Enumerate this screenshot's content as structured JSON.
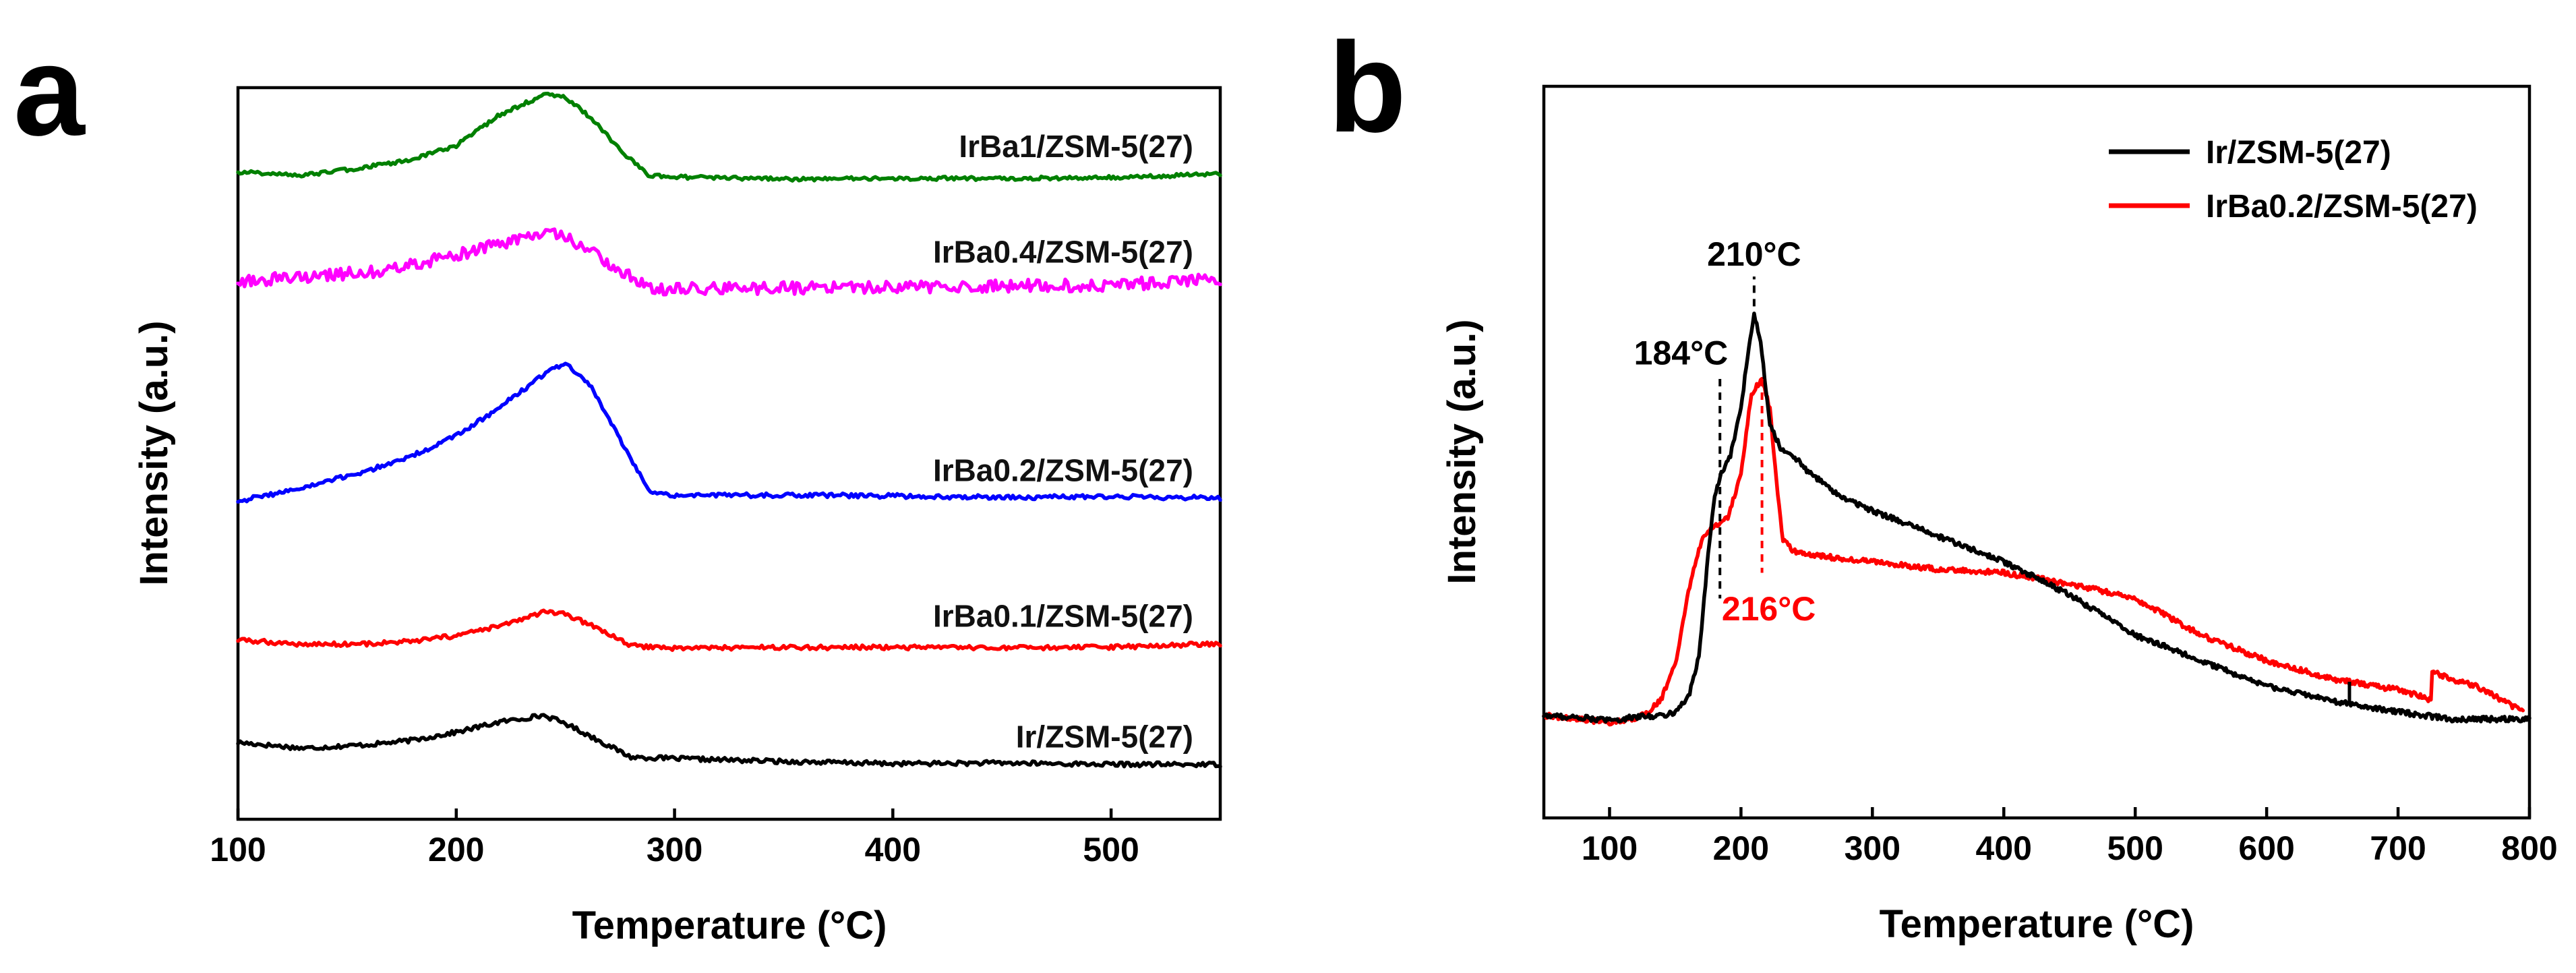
{
  "chart_data": [
    {
      "panel": "a",
      "type": "line",
      "title": "",
      "xlabel": "Temperature (°C)",
      "ylabel": "Intensity (a.u.)",
      "xlim": [
        100,
        550
      ],
      "ylim": [
        0,
        100
      ],
      "xticks": [
        100,
        200,
        300,
        400,
        500
      ],
      "yticks": [],
      "grid": false,
      "legend": "inline labels",
      "series": [
        {
          "name": "Ir/ZSM-5(27)",
          "color": "#000000",
          "offset": 10.5,
          "noise": 0.3,
          "x": [
            100,
            130,
            160,
            180,
            200,
            220,
            240,
            250,
            265,
            280,
            300,
            350,
            400,
            450,
            500,
            550
          ],
          "y": [
            0,
            -0.8,
            -0.3,
            0.3,
            1.4,
            2.8,
            3.7,
            2.6,
            0.3,
            -2.0,
            -2.2,
            -2.6,
            -2.9,
            -2.8,
            -3.0,
            -3.0
          ]
        },
        {
          "name": "IrBa0.1/ZSM-5(27)",
          "color": "#ff0000",
          "offset": 24.5,
          "noise": 0.3,
          "x": [
            100,
            130,
            160,
            180,
            200,
            220,
            240,
            250,
            265,
            280,
            300,
            350,
            400,
            450,
            500,
            550
          ],
          "y": [
            0,
            -0.6,
            -0.5,
            -0.2,
            0.6,
            1.9,
            3.8,
            3.5,
            1.6,
            -0.8,
            -1.1,
            -1.0,
            -1.0,
            -1.1,
            -1.0,
            -0.5
          ]
        },
        {
          "name": "IrBa0.2/ZSM-5(27)",
          "color": "#0000ff",
          "offset": 43.5,
          "noise": 0.3,
          "x": [
            100,
            130,
            160,
            180,
            200,
            220,
            240,
            250,
            262,
            275,
            288,
            300,
            350,
            400,
            450,
            500,
            550
          ],
          "y": [
            0,
            1.8,
            4.2,
            6.2,
            8.9,
            12.8,
            17.3,
            18.9,
            15.5,
            8.5,
            1.4,
            0.8,
            0.8,
            0.7,
            0.5,
            0.6,
            0.4
          ]
        },
        {
          "name": "IrBa0.4/ZSM-5(27)",
          "color": "#ff00ff",
          "offset": 73.5,
          "noise": 0.85,
          "x": [
            100,
            130,
            160,
            180,
            200,
            220,
            240,
            250,
            262,
            275,
            290,
            300,
            350,
            400,
            450,
            500,
            550
          ],
          "y": [
            0,
            0.6,
            1.3,
            2.3,
            3.6,
            5.2,
            6.6,
            6.0,
            4.2,
            1.3,
            -0.9,
            -1.0,
            -0.9,
            -0.8,
            -0.6,
            -0.5,
            0.3
          ]
        },
        {
          "name": "IrBa1/ZSM-5(27)",
          "color": "#008000",
          "offset": 88.5,
          "noise": 0.25,
          "x": [
            100,
            130,
            160,
            180,
            200,
            220,
            240,
            250,
            262,
            275,
            288,
            300,
            350,
            400,
            450,
            500,
            550
          ],
          "y": [
            0,
            -0.5,
            0.7,
            1.7,
            3.6,
            7.8,
            10.5,
            10.2,
            7.3,
            3.0,
            -0.5,
            -0.7,
            -1.0,
            -0.9,
            -0.9,
            -0.8,
            -0.3
          ]
        }
      ]
    },
    {
      "panel": "b",
      "type": "line",
      "title": "",
      "xlabel": "Temperature (°C)",
      "ylabel": "Intensity (a.u.)",
      "xlim": [
        50,
        800
      ],
      "ylim": [
        0,
        100
      ],
      "xticks": [
        100,
        200,
        300,
        400,
        500,
        600,
        700,
        800
      ],
      "yticks": [],
      "grid": false,
      "legend": "top-right",
      "series": [
        {
          "name": "Ir/ZSM-5(27)",
          "color": "#000000",
          "noise": 0.35,
          "x": [
            50,
            80,
            100,
            120,
            140,
            150,
            160,
            168,
            175,
            180,
            185,
            192,
            200,
            205,
            210,
            215,
            222,
            230,
            240,
            250,
            275,
            300,
            350,
            400,
            450,
            500,
            550,
            600,
            650,
            700,
            740,
            760,
            780,
            800
          ],
          "y": [
            14,
            13.7,
            13.3,
            13.8,
            14,
            14.5,
            16.5,
            22,
            36,
            44,
            47,
            49.5,
            56,
            63,
            69,
            65,
            54,
            50.5,
            49.5,
            47.5,
            44,
            42,
            38.5,
            35,
            30.5,
            25,
            21.5,
            18,
            16,
            14.5,
            13.5,
            13.5,
            13.5,
            13.5
          ],
          "spikes": [
            [
              663,
              3
            ]
          ]
        },
        {
          "name": "IrBa0.2/ZSM-5(27)",
          "color": "#ff0000",
          "noise": 0.35,
          "x": [
            50,
            80,
            100,
            120,
            130,
            140,
            150,
            160,
            170,
            180,
            190,
            200,
            208,
            216,
            222,
            228,
            232,
            240,
            250,
            300,
            350,
            400,
            450,
            500,
            550,
            600,
            650,
            700,
            720,
            725,
            726,
            740,
            760,
            780,
            795
          ],
          "y": [
            14,
            13.5,
            13,
            13.5,
            14.5,
            16.5,
            21,
            31,
            38,
            40,
            41,
            47,
            58,
            60,
            56,
            44,
            38,
            36.5,
            36,
            35,
            34,
            33.5,
            32,
            30,
            25,
            21.5,
            19,
            17.5,
            16.5,
            16,
            20,
            19,
            18,
            16,
            14.5
          ]
        }
      ],
      "annotations": [
        {
          "text": "210°C",
          "x": 210,
          "color": "#000000"
        },
        {
          "text": "184°C",
          "x": 184,
          "color": "#000000"
        },
        {
          "text": "216°C",
          "x": 216,
          "color": "#ff0000"
        }
      ]
    }
  ],
  "panels": {
    "a": {
      "letter": "a"
    },
    "b": {
      "letter": "b"
    }
  }
}
